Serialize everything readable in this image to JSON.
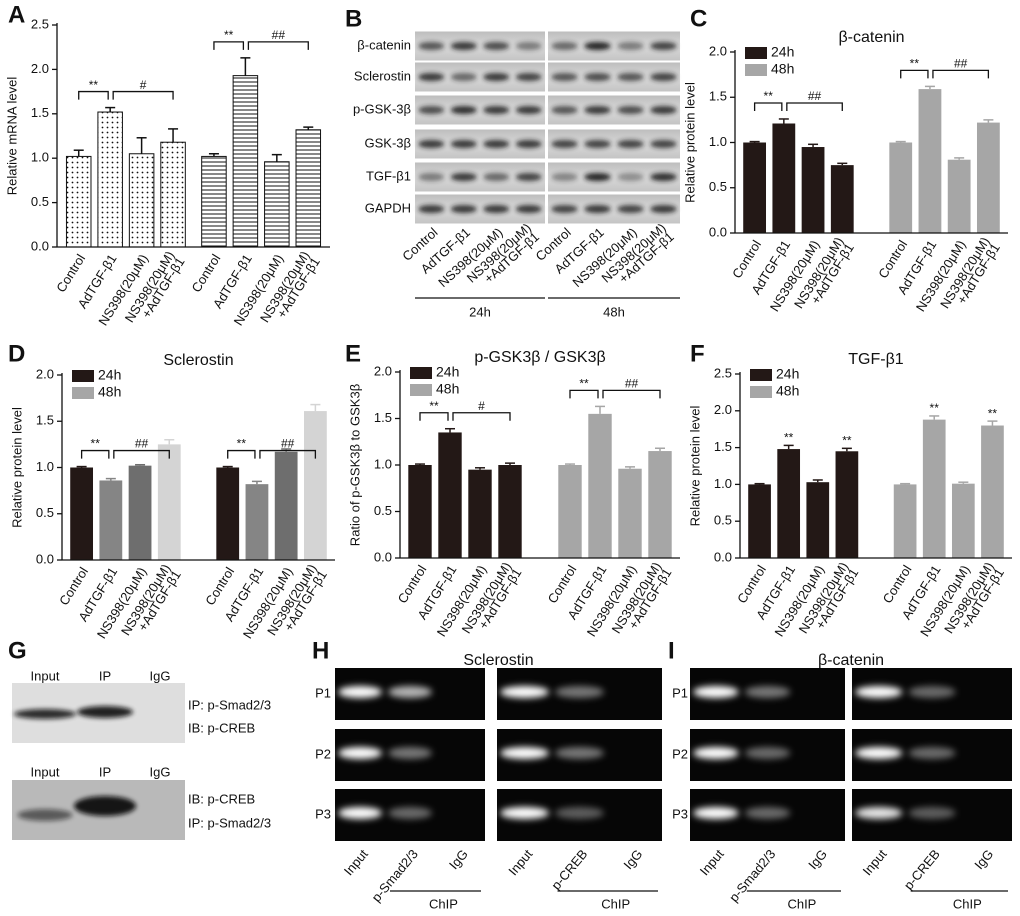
{
  "chart_data": [
    {
      "type": "bar",
      "panel": "A",
      "ylabel": "Relative mRNA level",
      "ylim": [
        0,
        2.5
      ],
      "yticks": [
        {
          "value": 0,
          "label": "0.0"
        },
        0.5,
        {
          "value": 1,
          "label": "1.0"
        },
        1.5,
        {
          "value": 2,
          "label": "2.0"
        },
        2.5
      ],
      "categories": [
        "Control",
        "AdTGF-β1",
        "NS398(20μM)",
        [
          "NS398(20μM)",
          "+AdTGF-β1"
        ]
      ],
      "series": [
        {
          "pattern": "dots",
          "values": [
            1.02,
            1.52,
            1.05,
            1.18
          ],
          "errors": [
            0.07,
            0.05,
            0.18,
            0.15
          ]
        },
        {
          "pattern": "hlines",
          "values": [
            1.02,
            1.93,
            0.96,
            1.32
          ],
          "errors": [
            0.03,
            0.2,
            0.08,
            0.03
          ]
        }
      ],
      "annotation_style": "brackets",
      "annotations": [
        [
          "**",
          "#"
        ],
        [
          "**",
          "##"
        ]
      ]
    },
    {
      "type": "bar",
      "panel": "C",
      "title": "β-catenin",
      "ylabel": "Relative protein level",
      "ylim": [
        0,
        2
      ],
      "yticks": [
        {
          "value": 0,
          "label": "0.0"
        },
        0.5,
        {
          "value": 1,
          "label": "1.0"
        },
        1.5,
        {
          "value": 2,
          "label": "2.0"
        }
      ],
      "categories": [
        "Control",
        "AdTGF-β1",
        "NS398(20μM)",
        [
          "NS398(20μM)",
          "+AdTGF-β1"
        ]
      ],
      "series": [
        {
          "name": "24h",
          "color": "#231816",
          "values": [
            1.0,
            1.21,
            0.95,
            0.75
          ],
          "errors": [
            0.01,
            0.05,
            0.03,
            0.02
          ]
        },
        {
          "name": "48h",
          "color": "#a6a6a6",
          "values": [
            1.0,
            1.59,
            0.81,
            1.22
          ],
          "errors": [
            0.01,
            0.03,
            0.02,
            0.03
          ]
        }
      ],
      "legend": "upper left",
      "annotation_style": "brackets",
      "annotations": [
        [
          "**",
          "##"
        ],
        [
          "**",
          "##"
        ]
      ]
    },
    {
      "type": "bar",
      "panel": "D",
      "title": "Sclerostin",
      "ylabel": "Relative protein level",
      "ylim": [
        0,
        2
      ],
      "yticks": [
        {
          "value": 0,
          "label": "0.0"
        },
        0.5,
        {
          "value": 1,
          "label": "1.0"
        },
        1.5,
        {
          "value": 2,
          "label": "2.0"
        }
      ],
      "categories": [
        "Control",
        "AdTGF-β1",
        "NS398(20μM)",
        [
          "NS398(20μM)",
          "+AdTGF-β1"
        ]
      ],
      "series": [
        {
          "name": "24h",
          "color": "#231816",
          "bar_colors": [
            "#231816",
            "#858585",
            "#6e6e6e",
            "#d4d4d4"
          ],
          "values": [
            1.0,
            0.86,
            1.02,
            1.25
          ],
          "errors": [
            0.01,
            0.02,
            0.01,
            0.05
          ]
        },
        {
          "name": "48h",
          "color": "#a6a6a6",
          "bar_colors": [
            "#231816",
            "#858585",
            "#6e6e6e",
            "#d4d4d4"
          ],
          "values": [
            1.0,
            0.82,
            1.17,
            1.61
          ],
          "errors": [
            0.01,
            0.03,
            0.03,
            0.07
          ]
        }
      ],
      "legend": "upper left",
      "annotation_style": "brackets",
      "annotations": [
        [
          "**",
          "##"
        ],
        [
          "**",
          "##"
        ]
      ]
    },
    {
      "type": "bar",
      "panel": "E",
      "title": "p-GSK3β / GSK3β",
      "ylabel": "Ratio of p-GSK3β to GSK3β",
      "ylim": [
        0,
        2
      ],
      "yticks": [
        {
          "value": 0,
          "label": "0.0"
        },
        0.5,
        {
          "value": 1,
          "label": "1.0"
        },
        1.5,
        {
          "value": 2,
          "label": "2.0"
        }
      ],
      "categories": [
        "Control",
        "AdTGF-β1",
        "NS398(20μM)",
        [
          "NS398(20μM)",
          "+AdTGF-β1"
        ]
      ],
      "series": [
        {
          "name": "24h",
          "color": "#231816",
          "values": [
            1.0,
            1.35,
            0.95,
            1.0
          ],
          "errors": [
            0.01,
            0.04,
            0.02,
            0.02
          ]
        },
        {
          "name": "48h",
          "color": "#a6a6a6",
          "values": [
            1.0,
            1.55,
            0.96,
            1.15
          ],
          "errors": [
            0.01,
            0.08,
            0.02,
            0.03
          ]
        }
      ],
      "legend": "upper left",
      "annotation_style": "brackets",
      "annotations": [
        [
          "**",
          "#"
        ],
        [
          "**",
          "##"
        ]
      ]
    },
    {
      "type": "bar",
      "panel": "F",
      "title": "TGF-β1",
      "ylabel": "Relative protein level",
      "ylim": [
        0,
        2.5
      ],
      "yticks": [
        {
          "value": 0,
          "label": "0.0"
        },
        0.5,
        {
          "value": 1,
          "label": "1.0"
        },
        1.5,
        {
          "value": 2,
          "label": "2.0"
        },
        2.5
      ],
      "categories": [
        "Control",
        "AdTGF-β1",
        "NS398(20μM)",
        [
          "NS398(20μM)",
          "+AdTGF-β1"
        ]
      ],
      "series": [
        {
          "name": "24h",
          "color": "#231816",
          "values": [
            1.0,
            1.48,
            1.03,
            1.45
          ],
          "errors": [
            0.01,
            0.05,
            0.03,
            0.04
          ]
        },
        {
          "name": "48h",
          "color": "#a6a6a6",
          "values": [
            1.0,
            1.88,
            1.01,
            1.8
          ],
          "errors": [
            0.01,
            0.05,
            0.02,
            0.06
          ]
        }
      ],
      "legend": "upper left",
      "annotation_style": "above",
      "annotations": [
        [
          null,
          "**",
          null,
          "**"
        ],
        [
          null,
          "**",
          null,
          "**"
        ]
      ]
    }
  ],
  "panels": [
    {
      "panel": "B",
      "rows": [
        "β-catenin",
        "Sclerostin",
        "p-GSK-3β",
        "GSK-3β",
        "TGF-β1",
        "GAPDH"
      ],
      "groups": [
        {
          "name": "24h",
          "lanes": [
            "Control",
            "AdTGF-β1",
            "NS398(20μM)",
            [
              "NS398(20μM)",
              "+AdTGF-β1"
            ]
          ]
        },
        {
          "name": "48h",
          "lanes": [
            "Control",
            "AdTGF-β1",
            "NS398(20μM)",
            [
              "NS398(20μM)",
              "+AdTGF-β1"
            ]
          ]
        }
      ]
    },
    {
      "panel": "G",
      "blots": [
        {
          "lanes": [
            "Input",
            "IP",
            "IgG"
          ],
          "labels": [
            "IP: p-Smad2/3",
            "IB: p-CREB"
          ]
        },
        {
          "lanes": [
            "Input",
            "IP",
            "IgG"
          ],
          "labels": [
            "IB: p-CREB",
            "IP: p-Smad2/3"
          ]
        }
      ]
    },
    {
      "panel": "H",
      "title": "Sclerostin",
      "rows": [
        "P1",
        "P2",
        "P3"
      ],
      "gels": [
        {
          "lanes": [
            "Input",
            "p-Smad2/3",
            "IgG"
          ],
          "group": "ChIP"
        },
        {
          "lanes": [
            "Input",
            "p-CREB",
            "IgG"
          ],
          "group": "ChIP"
        }
      ]
    },
    {
      "panel": "I",
      "title": "β-catenin",
      "rows": [
        "P1",
        "P2",
        "P3"
      ],
      "gels": [
        {
          "lanes": [
            "Input",
            "p-Smad2/3",
            "IgG"
          ],
          "group": "ChIP"
        },
        {
          "lanes": [
            "Input",
            "p-CREB",
            "IgG"
          ],
          "group": "ChIP"
        }
      ]
    }
  ]
}
